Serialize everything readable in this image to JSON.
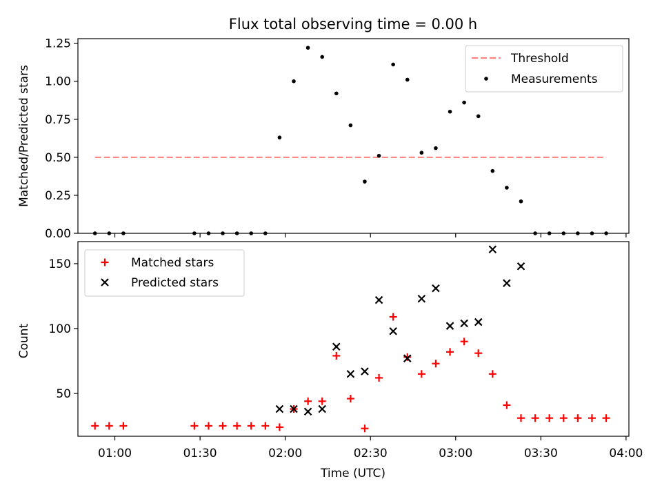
{
  "chart_data": [
    {
      "type": "scatter",
      "title": "Flux total observing time = 0.00 h",
      "xlabel": "",
      "ylabel": "Matched/Predicted stars",
      "ylim": [
        0,
        1.28
      ],
      "yticks": [
        "0.00",
        "0.25",
        "0.50",
        "0.75",
        "1.00",
        "1.25"
      ],
      "legend_position": "top-right",
      "threshold": {
        "name": "Threshold",
        "value": 0.5,
        "x_start": "00:53",
        "x_end": "03:53",
        "color": "#ff7f7f"
      },
      "series": [
        {
          "name": "Measurements",
          "color": "#000000",
          "x": [
            "00:53",
            "00:58",
            "01:03",
            "01:28",
            "01:33",
            "01:38",
            "01:43",
            "01:48",
            "01:53",
            "01:58",
            "02:03",
            "02:08",
            "02:13",
            "02:18",
            "02:23",
            "02:28",
            "02:33",
            "02:38",
            "02:43",
            "02:48",
            "02:53",
            "02:58",
            "03:03",
            "03:08",
            "03:13",
            "03:18",
            "03:23",
            "03:28",
            "03:33",
            "03:38",
            "03:43",
            "03:48",
            "03:53"
          ],
          "y": [
            0,
            0,
            0,
            0,
            0,
            0,
            0,
            0,
            0,
            0.63,
            1.0,
            1.22,
            1.16,
            0.92,
            0.71,
            0.34,
            0.51,
            1.11,
            1.01,
            0.53,
            0.56,
            0.8,
            0.86,
            0.77,
            0.41,
            0.3,
            0.21,
            0,
            0,
            0,
            0,
            0,
            0
          ]
        }
      ]
    },
    {
      "type": "scatter",
      "title": "",
      "xlabel": "Time (UTC)",
      "ylabel": "Count",
      "xlim": [
        "00:47",
        "04:01"
      ],
      "ylim": [
        17,
        167
      ],
      "xticks": [
        "01:00",
        "01:30",
        "02:00",
        "02:30",
        "03:00",
        "03:30",
        "04:00"
      ],
      "yticks": [
        "50",
        "100",
        "150"
      ],
      "legend_position": "top-left",
      "series": [
        {
          "name": "Matched stars",
          "color": "#ff0000",
          "marker": "plus",
          "x": [
            "00:53",
            "00:58",
            "01:03",
            "01:28",
            "01:33",
            "01:38",
            "01:43",
            "01:48",
            "01:53",
            "01:58",
            "02:03",
            "02:08",
            "02:13",
            "02:18",
            "02:23",
            "02:28",
            "02:33",
            "02:38",
            "02:43",
            "02:48",
            "02:53",
            "02:58",
            "03:03",
            "03:08",
            "03:13",
            "03:18",
            "03:23",
            "03:28",
            "03:33",
            "03:38",
            "03:43",
            "03:48",
            "03:53"
          ],
          "y": [
            25,
            25,
            25,
            25,
            25,
            25,
            25,
            25,
            25,
            24,
            38,
            44,
            44,
            79,
            46,
            23,
            62,
            109,
            78,
            65,
            73,
            82,
            90,
            81,
            65,
            41,
            31,
            31,
            31,
            31,
            31,
            31,
            31
          ]
        },
        {
          "name": "Predicted stars",
          "color": "#000000",
          "marker": "x",
          "x": [
            "01:58",
            "02:03",
            "02:08",
            "02:13",
            "02:18",
            "02:23",
            "02:28",
            "02:33",
            "02:38",
            "02:43",
            "02:48",
            "02:53",
            "02:58",
            "03:03",
            "03:08",
            "03:13",
            "03:18",
            "03:23"
          ],
          "y": [
            38,
            38,
            36,
            38,
            86,
            65,
            67,
            122,
            98,
            77,
            123,
            131,
            102,
            104,
            105,
            161,
            135,
            148
          ]
        }
      ]
    }
  ]
}
